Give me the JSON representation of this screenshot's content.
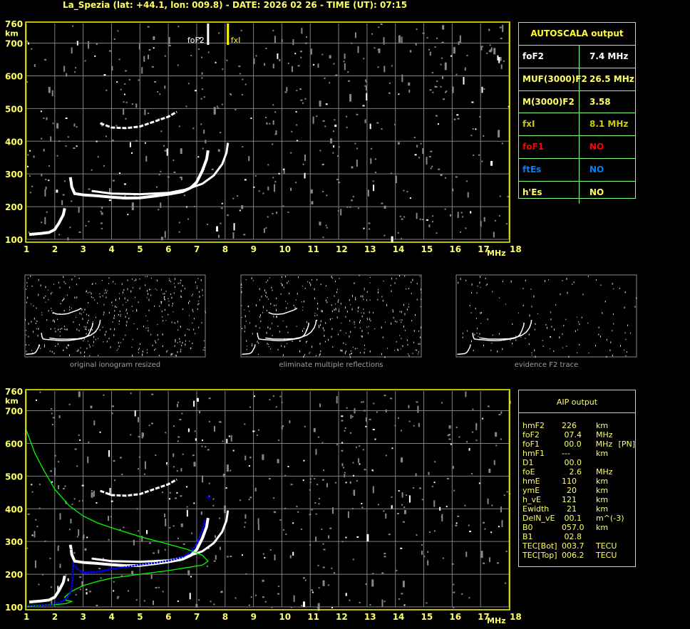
{
  "header": {
    "title": "La_Spezia (lat: +44.1, lon: 009.8) - DATE: 2026 02 26 - TIME (UT): 07:15"
  },
  "colors": {
    "axis": "#ffff00",
    "grid": "#808080",
    "table_border": "#80ff80",
    "profile": "#00ff00",
    "blue_trace": "#0000ff",
    "trace": "#ffffff"
  },
  "autoscala": {
    "title": "AUTOSCALA output",
    "rows": [
      {
        "key": "foF2",
        "value": "7.4 MHz",
        "color": "#ffffff"
      },
      {
        "key": "MUF(3000)F2",
        "value": "26.5 MHz",
        "color": "#ffff66"
      },
      {
        "key": "M(3000)F2",
        "value": "3.58",
        "color": "#ffff66"
      },
      {
        "key": "fxI",
        "value": "8.1 MHz",
        "color": "#cccc00"
      },
      {
        "key": "foF1",
        "value": "NO",
        "color": "#ff0000"
      },
      {
        "key": "ftEs",
        "value": "NO",
        "color": "#0080ff"
      },
      {
        "key": "h'Es",
        "value": "NO",
        "color": "#ffff66"
      }
    ]
  },
  "aip": {
    "title": "AIP output",
    "rows": [
      [
        "hmF2",
        "226",
        "km",
        ""
      ],
      [
        "foF2",
        " 07.4",
        "MHz",
        ""
      ],
      [
        "foF1",
        " 00.0",
        "MHz",
        "[PN]"
      ],
      [
        "hmF1",
        "---",
        "km",
        ""
      ],
      [
        "D1",
        " 00.0",
        "",
        ""
      ],
      [
        "foE",
        "   2.6",
        "MHz",
        ""
      ],
      [
        "hmE",
        "110",
        "km",
        ""
      ],
      [
        "ymE",
        "  20",
        "km",
        ""
      ],
      [
        "h_vE",
        "121",
        "km",
        ""
      ],
      [
        "Ewidth",
        "  21",
        "km",
        ""
      ],
      [
        "DelN_vE",
        " 00.1",
        "m^(-3)",
        ""
      ],
      [
        "B0",
        "057.0",
        "km",
        ""
      ],
      [
        "B1",
        " 02.8",
        "",
        ""
      ],
      [
        "TEC[Bot]",
        "003.7",
        "TECU",
        ""
      ],
      [
        "TEC[Top]",
        "006.2",
        "TECU",
        ""
      ]
    ]
  },
  "thumbnails": [
    {
      "caption": "original ionogram resized"
    },
    {
      "caption": "eliminate multiple reflections"
    },
    {
      "caption": "evidence F2 trace"
    }
  ],
  "chart_data": [
    {
      "type": "scatter",
      "name": "ionogram",
      "xlabel": "MHz",
      "ylabel": "km",
      "xlim": [
        1,
        18
      ],
      "ylim": [
        100,
        760
      ],
      "grid": true,
      "xticks": [
        "1",
        "2",
        "3",
        "4",
        "5",
        "6",
        "7",
        "8",
        "9",
        "10",
        "11",
        "12",
        "13",
        "14",
        "15",
        "16",
        "17",
        "18"
      ],
      "yticks": [
        "760",
        "700",
        "600",
        "500",
        "400",
        "300",
        "200",
        "100"
      ],
      "markers": [
        {
          "label": "foF2",
          "x": 7.4,
          "color": "#ffffff"
        },
        {
          "label": "fxI",
          "x": 8.1,
          "color": "#ffff00"
        }
      ],
      "traces": {
        "E": [
          [
            1.1,
            115
          ],
          [
            1.5,
            118
          ],
          [
            1.8,
            121
          ],
          [
            2.0,
            130
          ],
          [
            2.15,
            150
          ],
          [
            2.3,
            175
          ],
          [
            2.35,
            195
          ]
        ],
        "F2o": [
          [
            2.55,
            290
          ],
          [
            2.6,
            260
          ],
          [
            2.7,
            240
          ],
          [
            3,
            236
          ],
          [
            3.5,
            233
          ],
          [
            4,
            229
          ],
          [
            4.5,
            226
          ],
          [
            5,
            227
          ],
          [
            5.5,
            232
          ],
          [
            6,
            238
          ],
          [
            6.5,
            246
          ],
          [
            6.8,
            258
          ],
          [
            7.0,
            275
          ],
          [
            7.2,
            310
          ],
          [
            7.35,
            345
          ],
          [
            7.4,
            372
          ]
        ],
        "F2x": [
          [
            3.3,
            248
          ],
          [
            4,
            240
          ],
          [
            5,
            238
          ],
          [
            6,
            242
          ],
          [
            6.6,
            252
          ],
          [
            7.2,
            270
          ],
          [
            7.6,
            295
          ],
          [
            7.9,
            330
          ],
          [
            8.05,
            365
          ],
          [
            8.1,
            395
          ]
        ],
        "F2_2hop": [
          [
            3.6,
            455
          ],
          [
            4,
            442
          ],
          [
            4.5,
            440
          ],
          [
            5,
            445
          ],
          [
            5.5,
            460
          ],
          [
            6,
            475
          ],
          [
            6.3,
            490
          ]
        ]
      }
    },
    {
      "type": "line",
      "name": "ionogram-with-profile",
      "xlabel": "MHz",
      "ylabel": "km",
      "xlim": [
        1,
        18
      ],
      "ylim": [
        100,
        760
      ],
      "grid": true,
      "profile": [
        [
          1,
          640
        ],
        [
          1.3,
          570
        ],
        [
          1.6,
          520
        ],
        [
          2,
          460
        ],
        [
          2.5,
          410
        ],
        [
          3,
          378
        ],
        [
          3.5,
          357
        ],
        [
          4,
          342
        ],
        [
          5,
          315
        ],
        [
          6,
          292
        ],
        [
          6.7,
          275
        ],
        [
          7.2,
          258
        ],
        [
          7.4,
          240
        ],
        [
          7.2,
          228
        ],
        [
          6.5,
          218
        ],
        [
          6,
          211
        ],
        [
          5,
          200
        ],
        [
          4,
          188
        ],
        [
          3.5,
          178
        ],
        [
          3,
          165
        ],
        [
          2.6,
          148
        ],
        [
          2.35,
          130
        ],
        [
          2.4,
          120
        ],
        [
          2.6,
          117
        ],
        [
          2.4,
          110
        ],
        [
          2,
          107
        ],
        [
          1.6,
          105
        ],
        [
          1,
          102
        ]
      ],
      "blue_trace": [
        [
          1,
          104
        ],
        [
          1.6,
          105
        ],
        [
          2.0,
          110
        ],
        [
          2.3,
          118
        ],
        [
          2.5,
          135
        ],
        [
          2.6,
          155
        ],
        [
          2.65,
          230
        ],
        [
          2.8,
          215
        ],
        [
          3,
          205
        ],
        [
          3.5,
          207
        ],
        [
          4,
          216
        ],
        [
          4.5,
          222
        ],
        [
          5,
          229
        ],
        [
          5.5,
          234
        ],
        [
          6,
          241
        ],
        [
          6.5,
          252
        ],
        [
          6.8,
          268
        ],
        [
          7.0,
          295
        ],
        [
          7.2,
          335
        ],
        [
          7.3,
          365
        ]
      ],
      "blue_points": [
        [
          2.5,
          275
        ],
        [
          7.4,
          435
        ]
      ]
    }
  ]
}
